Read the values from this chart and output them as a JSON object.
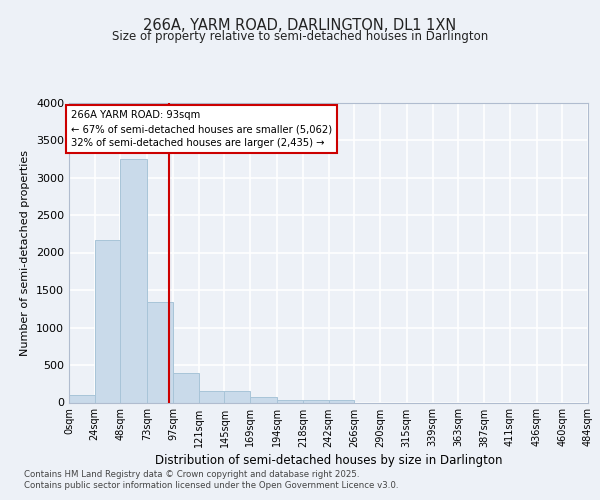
{
  "title_line1": "266A, YARM ROAD, DARLINGTON, DL1 1XN",
  "title_line2": "Size of property relative to semi-detached houses in Darlington",
  "xlabel": "Distribution of semi-detached houses by size in Darlington",
  "ylabel": "Number of semi-detached properties",
  "bin_edges": [
    0,
    24,
    48,
    73,
    97,
    121,
    145,
    169,
    194,
    218,
    242,
    266,
    290,
    315,
    339,
    363,
    387,
    411,
    436,
    460,
    484
  ],
  "bar_heights": [
    100,
    2170,
    3250,
    1340,
    390,
    160,
    160,
    80,
    40,
    40,
    30,
    0,
    0,
    0,
    0,
    0,
    0,
    0,
    0,
    0
  ],
  "bar_color": "#c9daea",
  "bar_edgecolor": "#a8c4d8",
  "property_size": 93,
  "vline_color": "#cc0000",
  "annotation_text": "266A YARM ROAD: 93sqm\n← 67% of semi-detached houses are smaller (5,062)\n32% of semi-detached houses are larger (2,435) →",
  "annotation_box_edgecolor": "#cc0000",
  "annotation_box_facecolor": "#ffffff",
  "ylim": [
    0,
    4000
  ],
  "yticks": [
    0,
    500,
    1000,
    1500,
    2000,
    2500,
    3000,
    3500,
    4000
  ],
  "background_color": "#edf1f7",
  "plot_bg_color": "#edf1f7",
  "grid_color": "#ffffff",
  "footer_line1": "Contains HM Land Registry data © Crown copyright and database right 2025.",
  "footer_line2": "Contains public sector information licensed under the Open Government Licence v3.0.",
  "tick_labels": [
    "0sqm",
    "24sqm",
    "48sqm",
    "73sqm",
    "97sqm",
    "121sqm",
    "145sqm",
    "169sqm",
    "194sqm",
    "218sqm",
    "242sqm",
    "266sqm",
    "290sqm",
    "315sqm",
    "339sqm",
    "363sqm",
    "387sqm",
    "411sqm",
    "436sqm",
    "460sqm",
    "484sqm"
  ]
}
